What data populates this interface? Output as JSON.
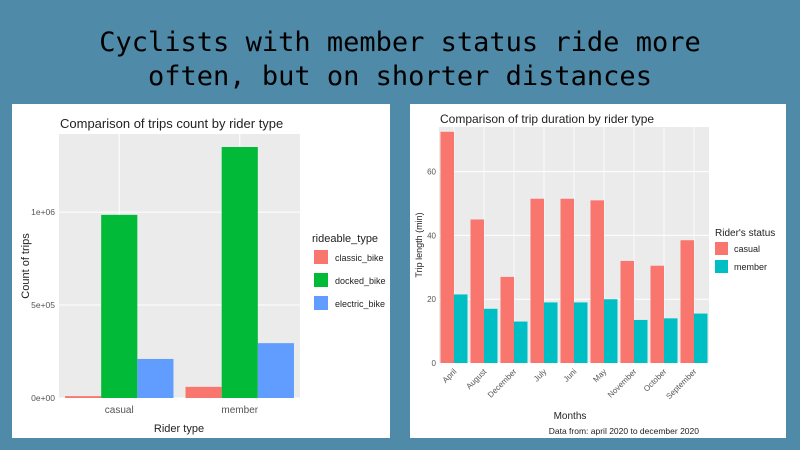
{
  "slide": {
    "title_line1": "Cyclists with member status ride more",
    "title_line2": "often, but on shorter distances"
  },
  "chart_data": [
    {
      "type": "bar",
      "title": "Comparison of trips count by rider type",
      "xlabel": "Rider type",
      "ylabel": "Count of trips",
      "categories": [
        "casual",
        "member"
      ],
      "series": [
        {
          "name": "classic_bike",
          "color": "#f8766d",
          "values": [
            10000,
            60000
          ]
        },
        {
          "name": "docked_bike",
          "color": "#00ba38",
          "values": [
            985000,
            1350000
          ]
        },
        {
          "name": "electric_bike",
          "color": "#619cff",
          "values": [
            210000,
            295000
          ]
        }
      ],
      "ylim": [
        0,
        1420000
      ],
      "yticks": [
        {
          "value": 0,
          "label": "0e+00"
        },
        {
          "value": 500000,
          "label": "5e+05"
        },
        {
          "value": 1000000,
          "label": "1e+06"
        }
      ],
      "legend_title": "rideable_type",
      "legend_position": "right",
      "grid": true
    },
    {
      "type": "bar",
      "title": "Comparison of trip duration by rider type",
      "xlabel": "Months",
      "ylabel": "Trip length (min)",
      "categories": [
        "April",
        "August",
        "December",
        "July",
        "Juni",
        "May",
        "November",
        "October",
        "September"
      ],
      "series": [
        {
          "name": "casual",
          "color": "#f8766d",
          "values": [
            72.5,
            45,
            27,
            51.5,
            51.5,
            51,
            32,
            30.5,
            38.5
          ]
        },
        {
          "name": "member",
          "color": "#00bfc4",
          "values": [
            21.5,
            17,
            13,
            19,
            19,
            20,
            13.5,
            14,
            15.5
          ]
        }
      ],
      "ylim": [
        0,
        74
      ],
      "yticks": [
        0,
        20,
        40,
        60
      ],
      "legend_title": "Rider's status",
      "legend_position": "right",
      "caption": "Data from: april 2020 to december 2020",
      "grid": true
    }
  ]
}
